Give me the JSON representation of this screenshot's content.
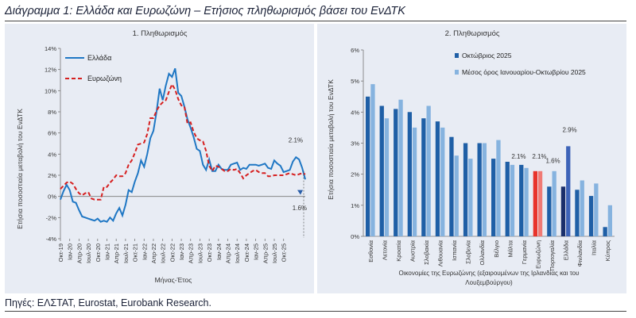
{
  "title": "Διάγραμμα 1: Ελλάδα και Ευρωζώνη – Ετήσιος πληθωρισμός βάσει του ΕνΔΤΚ",
  "source": "Πηγές: ΕΛΣΤΑΤ, Eurostat, Eurobank Research.",
  "colors": {
    "greece_line": "#1f77c4",
    "ez_line": "#d62020",
    "bar_oct": "#1f5fa6",
    "bar_avg": "#86b3df",
    "ez_bar": "#e8332b",
    "greece_bar": "#1a2f6b"
  },
  "chart_data": [
    {
      "type": "line",
      "title": "1. Πληθωρισμός",
      "xlabel": "Μήνας-Έτος",
      "ylabel": "Ετήσια ποσοστιαία μεταβολή του ΕνΔΤΚ",
      "ylim": [
        -4,
        14
      ],
      "y_ticks": [
        "-4%",
        "-2%",
        "0%",
        "2%",
        "4%",
        "6%",
        "8%",
        "10%",
        "12%",
        "14%"
      ],
      "x_ticks": [
        "Οκτ-19",
        "Ιαν-20",
        "Απρ-20",
        "Ιουλ-20",
        "Οκτ-20",
        "Ιαν-21",
        "Απρ-21",
        "Ιουλ-21",
        "Οκτ-21",
        "Ιαν-22",
        "Απρ-22",
        "Ιουλ-22",
        "Οκτ-22",
        "Ιαν-23",
        "Απρ-23",
        "Ιουλ-23",
        "Οκτ-23",
        "Ιαν-24",
        "Απρ-24",
        "Ιουλ-24",
        "Οκτ-24",
        "Ιαν-25",
        "Απρ-25",
        "Ιουλ-25",
        "Οκτ-25"
      ],
      "series": [
        {
          "name": "Ελλάδα",
          "values": [
            -0.3,
            0.5,
            1.1,
            0.6,
            -0.5,
            -0.6,
            -1.3,
            -1.9,
            -2.0,
            -2.1,
            -2.2,
            -2.3,
            -2.1,
            -2.4,
            -2.3,
            -2.4,
            -2.0,
            -2.3,
            -1.6,
            -1.1,
            -1.8,
            -0.8,
            0.6,
            0.4,
            1.4,
            2.2,
            3.4,
            2.8,
            4.0,
            5.5,
            6.2,
            8.0,
            10.2,
            9.1,
            10.5,
            11.6,
            11.3,
            12.1,
            9.8,
            9.5,
            8.5,
            7.3,
            6.5,
            5.6,
            4.5,
            4.3,
            3.0,
            2.5,
            3.5,
            2.4,
            2.4,
            3.0,
            2.6,
            2.5,
            2.5,
            3.0,
            3.1,
            3.2,
            2.5,
            2.7,
            2.6,
            3.0,
            3.0,
            3.0,
            2.9,
            3.0,
            3.1,
            2.7,
            2.6,
            3.4,
            3.1,
            2.9,
            2.3,
            2.4,
            2.5,
            3.3,
            3.7,
            3.5,
            2.7,
            1.6
          ]
        },
        {
          "name": "Ευρωζώνη",
          "values": [
            0.7,
            1.0,
            1.3,
            1.4,
            1.2,
            0.7,
            0.3,
            0.1,
            0.3,
            0.4,
            -0.2,
            -0.3,
            -0.3,
            -0.3,
            0.9,
            0.9,
            1.3,
            1.6,
            2.0,
            1.9,
            1.9,
            2.2,
            3.0,
            3.4,
            4.1,
            4.9,
            5.0,
            5.1,
            5.9,
            7.4,
            7.4,
            8.1,
            8.6,
            8.9,
            9.1,
            9.9,
            10.6,
            10.1,
            9.2,
            8.6,
            8.5,
            6.9,
            7.0,
            6.1,
            5.5,
            5.3,
            5.2,
            4.3,
            2.9,
            2.4,
            2.9,
            2.8,
            2.6,
            2.4,
            2.4,
            2.6,
            2.5,
            2.6,
            2.2,
            1.7,
            2.0,
            2.2,
            2.4,
            2.5,
            2.3,
            2.2,
            2.2,
            1.9,
            1.9,
            2.0,
            2.0,
            2.0,
            2.0,
            2.1,
            2.2,
            2.1,
            2.0,
            2.1,
            2.2,
            2.1
          ]
        }
      ],
      "annotations": [
        "2.1%",
        "1.6%"
      ]
    },
    {
      "type": "bar",
      "title": "2. Πληθωρισμός",
      "xlabel": "Οικονομίες της Ευρωζώνης (εξαιρουμένων της Ιρλανδίας και του Λουξεμβούργου)",
      "ylabel": "Ετήσια ποσοστιαία μεταβολή του ΕνΔΤΚ",
      "ylim": [
        0,
        6
      ],
      "y_ticks": [
        "0%",
        "1%",
        "2%",
        "3%",
        "4%",
        "5%",
        "6%"
      ],
      "categories": [
        "Εσθονία",
        "Λετονία",
        "Κροατία",
        "Αυστρία",
        "Σλοβακία",
        "Λιθουανία",
        "Ισπανία",
        "Σλοβενία",
        "Ολλανδία",
        "Βέλγιο",
        "Μάλτα",
        "Γερμανία",
        "Ευρωζώνη",
        "Πορτογαλία",
        "Ελλάδα",
        "Φινλανδία",
        "Ιταλία",
        "Κύπρος"
      ],
      "series": [
        {
          "name": "Οκτώβριος 2025",
          "values": [
            4.5,
            4.2,
            4.1,
            4.0,
            3.8,
            3.7,
            3.2,
            3.0,
            3.0,
            2.5,
            2.4,
            2.3,
            2.1,
            1.6,
            1.6,
            1.5,
            1.3,
            0.3
          ]
        },
        {
          "name": "Μέσος όρος Ιανουαρίου-Οκτωβρίου 2025",
          "values": [
            4.9,
            3.8,
            4.4,
            3.5,
            4.2,
            3.5,
            2.6,
            2.5,
            3.0,
            3.1,
            2.3,
            2.2,
            2.1,
            2.1,
            2.9,
            1.8,
            1.7,
            1.0
          ]
        }
      ],
      "annotations": [
        "2.1%",
        "2.1%",
        "1.6%",
        "2.9%"
      ]
    }
  ]
}
